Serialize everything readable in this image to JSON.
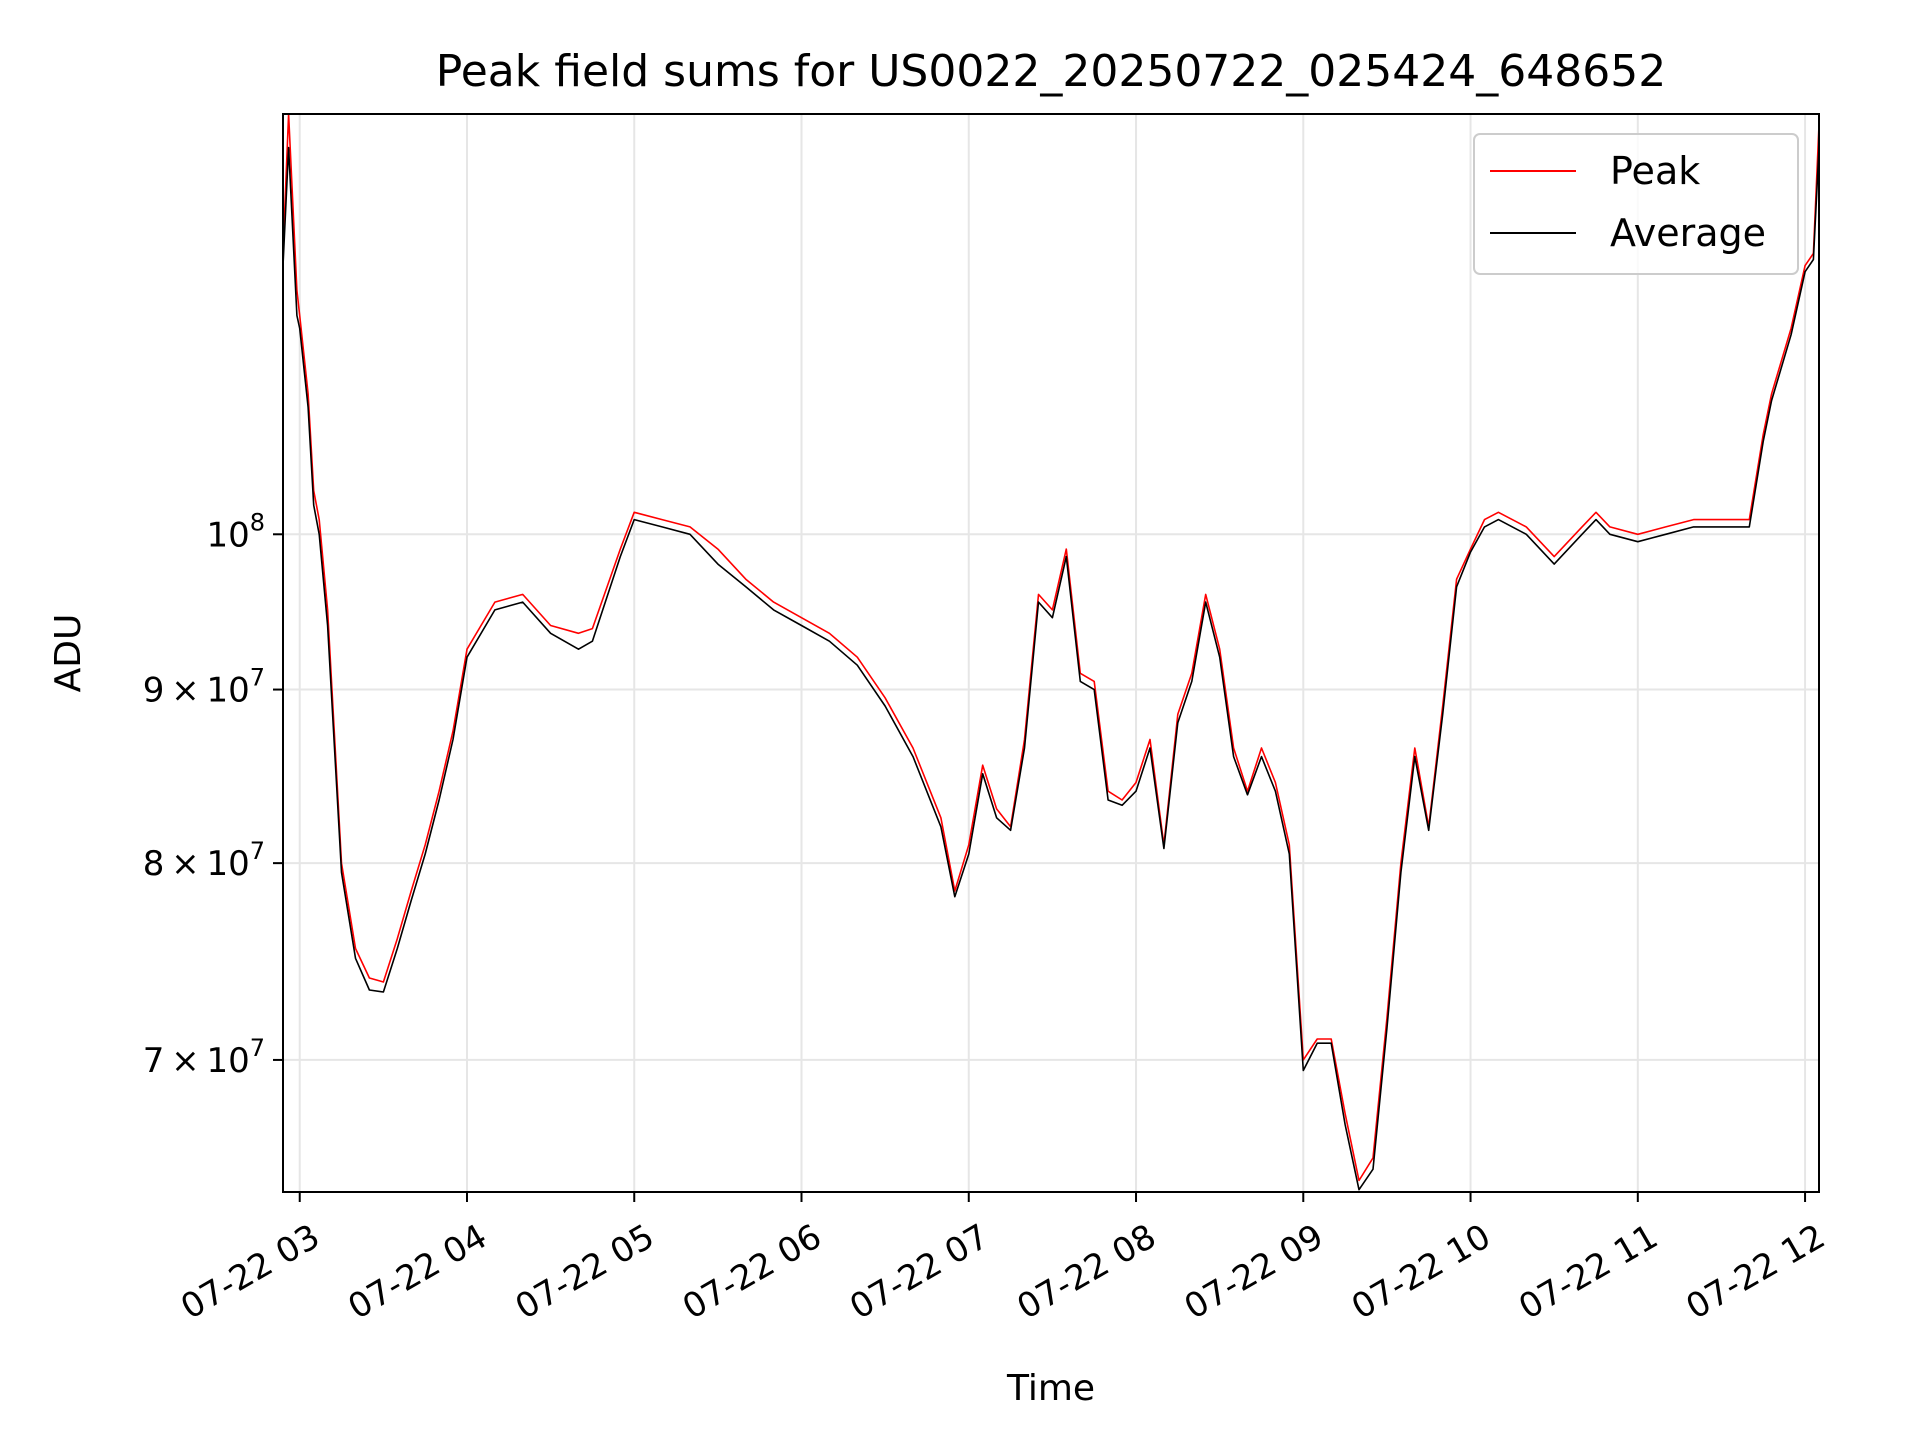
{
  "chart_data": {
    "type": "line",
    "title": "Peak field sums for US0022_20250722_025424_648652",
    "xlabel": "Time",
    "ylabel": "ADU",
    "yscale": "log",
    "xlim": [
      "2025-07-22 02:54",
      "2025-07-22 12:05"
    ],
    "ylim": [
      64000000,
      133000000
    ],
    "grid": true,
    "legend_position": "upper right",
    "x_ticks": [
      "07-22 03",
      "07-22 04",
      "07-22 05",
      "07-22 06",
      "07-22 07",
      "07-22 08",
      "07-22 09",
      "07-22 10",
      "07-22 11",
      "07-22 12"
    ],
    "y_ticks": [
      {
        "value": 70000000,
        "mantissa": "7",
        "base": "10",
        "exponent": "7"
      },
      {
        "value": 80000000,
        "mantissa": "8",
        "base": "10",
        "exponent": "7"
      },
      {
        "value": 90000000,
        "mantissa": "9",
        "base": "10",
        "exponent": "7"
      },
      {
        "value": 100000000,
        "mantissa": "",
        "base": "10",
        "exponent": "8"
      }
    ],
    "series": [
      {
        "name": "Peak",
        "color": "#ff0000",
        "x": [
          "02:54",
          "02:56",
          "02:59",
          "03:00",
          "03:03",
          "03:05",
          "03:07",
          "03:10",
          "03:15",
          "03:20",
          "03:25",
          "03:30",
          "03:35",
          "03:40",
          "03:45",
          "03:50",
          "03:55",
          "04:00",
          "04:10",
          "04:20",
          "04:30",
          "04:40",
          "04:45",
          "04:55",
          "05:00",
          "05:10",
          "05:20",
          "05:30",
          "05:40",
          "05:50",
          "06:00",
          "06:10",
          "06:20",
          "06:30",
          "06:40",
          "06:50",
          "06:55",
          "07:00",
          "07:05",
          "07:10",
          "07:15",
          "07:20",
          "07:25",
          "07:30",
          "07:35",
          "07:40",
          "07:45",
          "07:50",
          "07:55",
          "08:00",
          "08:05",
          "08:10",
          "08:15",
          "08:20",
          "08:25",
          "08:30",
          "08:35",
          "08:40",
          "08:45",
          "08:50",
          "08:55",
          "09:00",
          "09:05",
          "09:10",
          "09:15",
          "09:20",
          "09:25",
          "09:30",
          "09:35",
          "09:40",
          "09:45",
          "09:50",
          "09:55",
          "10:00",
          "10:05",
          "10:10",
          "10:20",
          "10:30",
          "10:40",
          "10:45",
          "10:50",
          "11:00",
          "11:10",
          "11:20",
          "11:30",
          "11:40",
          "11:45",
          "11:48",
          "11:55",
          "12:00",
          "12:03",
          "12:05"
        ],
        "y": [
          121000000,
          133000000,
          118000000,
          116000000,
          110000000,
          103000000,
          101000000,
          95000000,
          80000000,
          75500000,
          74000000,
          73800000,
          76000000,
          78500000,
          81000000,
          84000000,
          87500000,
          92500000,
          95500000,
          96000000,
          94000000,
          93500000,
          93800000,
          99000000,
          101500000,
          101000000,
          100500000,
          99000000,
          97000000,
          95500000,
          94500000,
          93500000,
          92000000,
          89500000,
          86500000,
          82500000,
          78500000,
          81000000,
          85500000,
          83000000,
          82000000,
          87000000,
          96000000,
          95000000,
          99000000,
          91000000,
          90500000,
          84000000,
          83500000,
          84500000,
          87000000,
          81000000,
          88500000,
          91000000,
          96000000,
          92500000,
          86500000,
          84000000,
          86500000,
          84500000,
          81000000,
          70000000,
          71000000,
          71000000,
          67500000,
          64500000,
          65500000,
          72000000,
          80000000,
          86500000,
          82000000,
          89000000,
          97000000,
          99000000,
          101000000,
          101500000,
          100500000,
          98500000,
          100500000,
          101500000,
          100500000,
          100000000,
          100500000,
          101000000,
          101000000,
          101000000,
          107000000,
          110000000,
          115000000,
          120000000,
          121000000,
          132000000
        ]
      },
      {
        "name": "Average",
        "color": "#000000",
        "x": [
          "02:54",
          "02:56",
          "02:59",
          "03:00",
          "03:03",
          "03:05",
          "03:07",
          "03:10",
          "03:15",
          "03:20",
          "03:25",
          "03:30",
          "03:35",
          "03:40",
          "03:45",
          "03:50",
          "03:55",
          "04:00",
          "04:10",
          "04:20",
          "04:30",
          "04:40",
          "04:45",
          "04:55",
          "05:00",
          "05:10",
          "05:20",
          "05:30",
          "05:40",
          "05:50",
          "06:00",
          "06:10",
          "06:20",
          "06:30",
          "06:40",
          "06:50",
          "06:55",
          "07:00",
          "07:05",
          "07:10",
          "07:15",
          "07:20",
          "07:25",
          "07:30",
          "07:35",
          "07:40",
          "07:45",
          "07:50",
          "07:55",
          "08:00",
          "08:05",
          "08:10",
          "08:15",
          "08:20",
          "08:25",
          "08:30",
          "08:35",
          "08:40",
          "08:45",
          "08:50",
          "08:55",
          "09:00",
          "09:05",
          "09:10",
          "09:15",
          "09:20",
          "09:25",
          "09:30",
          "09:35",
          "09:40",
          "09:45",
          "09:50",
          "09:55",
          "10:00",
          "10:05",
          "10:10",
          "10:20",
          "10:30",
          "10:40",
          "10:45",
          "10:50",
          "11:00",
          "11:10",
          "11:20",
          "11:30",
          "11:40",
          "11:45",
          "11:48",
          "11:55",
          "12:00",
          "12:03",
          "12:05"
        ],
        "y": [
          120000000,
          130000000,
          116000000,
          115000000,
          109000000,
          102000000,
          100000000,
          94000000,
          79500000,
          75000000,
          73400000,
          73300000,
          75500000,
          78000000,
          80500000,
          83500000,
          87000000,
          92000000,
          95000000,
          95500000,
          93500000,
          92500000,
          93000000,
          98500000,
          101000000,
          100500000,
          100000000,
          98000000,
          96500000,
          95000000,
          94000000,
          93000000,
          91500000,
          89000000,
          86000000,
          82000000,
          78200000,
          80500000,
          85000000,
          82500000,
          81800000,
          86500000,
          95500000,
          94500000,
          98500000,
          90500000,
          90000000,
          83500000,
          83200000,
          84000000,
          86500000,
          80800000,
          88000000,
          90500000,
          95500000,
          92000000,
          86000000,
          83800000,
          86000000,
          84000000,
          80500000,
          69500000,
          70800000,
          70800000,
          67000000,
          64100000,
          65000000,
          71500000,
          79500000,
          86000000,
          81800000,
          88500000,
          96500000,
          98800000,
          100500000,
          101000000,
          100000000,
          98000000,
          100000000,
          101000000,
          100000000,
          99500000,
          100000000,
          100500000,
          100500000,
          100500000,
          106500000,
          109500000,
          114500000,
          119500000,
          120500000,
          130000000
        ]
      }
    ]
  }
}
